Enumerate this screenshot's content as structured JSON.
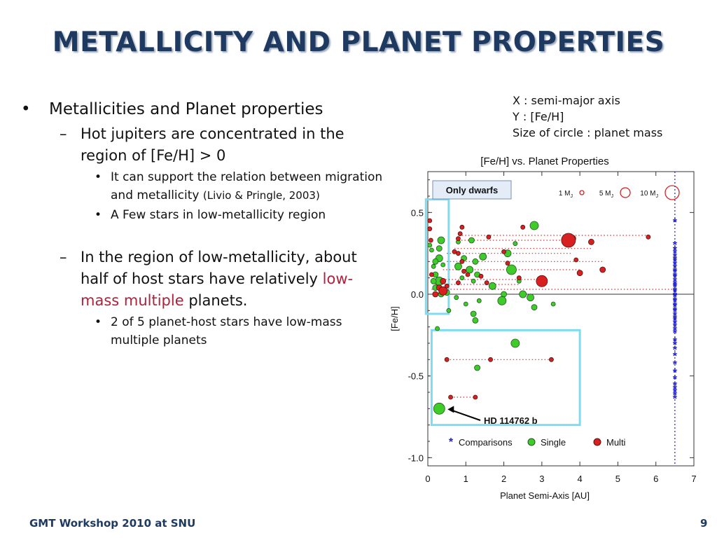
{
  "slide": {
    "title": "METALLICITY AND PLANET PROPERTIES",
    "bullets": {
      "b1": "Metallicities and Planet properties",
      "b1a": "Hot jupiters are concentrated in the region of [Fe/H] > 0",
      "b1a1_main": "It can support the relation between migration and metallicity ",
      "b1a1_cite": "(Livio & Pringle, 2003)",
      "b1a2": "A Few stars in low-metallicity region",
      "b1b_pre": "In the region of low-metallicity, about half of host stars have relatively ",
      "b1b_red": "low-mass multiple",
      "b1b_post": " planets.",
      "b1b1": "2 of 5 planet-host stars have low-mass multiple planets"
    },
    "caption": {
      "line1": "X : semi-major axis",
      "line2": "Y : [Fe/H]",
      "line3": "Size of circle : planet mass"
    },
    "footer": {
      "left": "GMT Workshop 2010 at SNU",
      "page": "9"
    },
    "bullet_marks": {
      "l1": "•",
      "l2": "–",
      "l3": "•"
    }
  },
  "chart_data": {
    "type": "scatter",
    "title": "[Fe/H] vs. Planet Properties",
    "xlabel": "Planet Semi-Axis [AU]",
    "ylabel": "[Fe/H]",
    "xlim": [
      0,
      7
    ],
    "ylim": [
      -1.05,
      0.75
    ],
    "xticks": [
      0,
      1,
      2,
      3,
      4,
      5,
      6,
      7
    ],
    "yticks": [
      {
        "v": 0.5,
        "label": "0.5"
      },
      {
        "v": 0.0,
        "label": "0.0"
      },
      {
        "v": -0.5,
        "label": "-0.5"
      },
      {
        "v": -1.0,
        "label": "-1.0"
      }
    ],
    "grid": false,
    "legend_position": "bottom",
    "colors": {
      "single": "#3fcc2a",
      "multi": "#d92020",
      "comparison": "#2222cc",
      "box": "#7ddcf0",
      "dots": "#cc3333",
      "vline": "#2222cc"
    },
    "size_key": [
      {
        "label": "1 M",
        "sub": "J",
        "mass": 1
      },
      {
        "label": "5 M",
        "sub": "J",
        "mass": 5
      },
      {
        "label": "10 M",
        "sub": "J",
        "mass": 10
      }
    ],
    "annotations": {
      "only_dwarfs": "Only dwarfs",
      "hd": "HD 114762 b"
    },
    "legend": [
      {
        "key": "comparison",
        "label": "Comparisons"
      },
      {
        "key": "single",
        "label": "Single"
      },
      {
        "key": "multi",
        "label": "Multi"
      }
    ],
    "series": [
      {
        "name": "Comparisons",
        "marker": "asterisk",
        "x": 6.5,
        "y": [
          0.44,
          0.3,
          0.27,
          0.25,
          0.23,
          0.21,
          0.2,
          0.18,
          0.16,
          0.14,
          0.13,
          0.11,
          0.1,
          0.08,
          0.06,
          0.05,
          0.04,
          0.02,
          0.01,
          -0.01,
          -0.02,
          -0.04,
          -0.05,
          -0.07,
          -0.08,
          -0.1,
          -0.11,
          -0.13,
          -0.15,
          -0.16,
          -0.18,
          -0.2,
          -0.22,
          -0.24,
          -0.29,
          -0.31,
          -0.34,
          -0.38,
          -0.43,
          -0.48,
          -0.52,
          -0.56,
          -0.58,
          -0.6,
          -0.62,
          -0.64
        ]
      },
      {
        "name": "Single",
        "marker": "circle",
        "points": [
          [
            2.8,
            0.42,
            4
          ],
          [
            0.35,
            0.33,
            3
          ],
          [
            0.3,
            0.28,
            2
          ],
          [
            0.05,
            0.3,
            1
          ],
          [
            0.1,
            0.27,
            1
          ],
          [
            0.3,
            0.22,
            3
          ],
          [
            0.2,
            0.2,
            2
          ],
          [
            0.15,
            0.17,
            1
          ],
          [
            0.4,
            0.18,
            1
          ],
          [
            0.2,
            0.12,
            2
          ],
          [
            0.3,
            0.08,
            4
          ],
          [
            0.15,
            0.08,
            2
          ],
          [
            0.2,
            0.04,
            2
          ],
          [
            0.35,
            0.0,
            2
          ],
          [
            0.5,
            0.01,
            2
          ],
          [
            0.8,
            0.32,
            1
          ],
          [
            1.15,
            0.33,
            2
          ],
          [
            2.3,
            0.31,
            1
          ],
          [
            2.1,
            0.25,
            3
          ],
          [
            0.95,
            0.22,
            2
          ],
          [
            1.25,
            0.2,
            2
          ],
          [
            1.45,
            0.23,
            3
          ],
          [
            0.8,
            0.17,
            3
          ],
          [
            1.1,
            0.15,
            3
          ],
          [
            2.2,
            0.15,
            5
          ],
          [
            1.3,
            0.12,
            2
          ],
          [
            0.9,
            0.1,
            1
          ],
          [
            1.2,
            0.08,
            1
          ],
          [
            2.4,
            0.08,
            1
          ],
          [
            1.7,
            0.05,
            3
          ],
          [
            2.5,
            0.0,
            3
          ],
          [
            2.0,
            0.0,
            2
          ],
          [
            2.7,
            -0.02,
            3
          ],
          [
            1.95,
            -0.04,
            4
          ],
          [
            0.75,
            -0.02,
            1
          ],
          [
            1.35,
            -0.04,
            1
          ],
          [
            1.0,
            -0.06,
            1
          ],
          [
            3.3,
            -0.06,
            1
          ],
          [
            2.8,
            -0.08,
            2
          ],
          [
            0.55,
            -0.1,
            1
          ],
          [
            1.2,
            -0.12,
            2
          ],
          [
            1.25,
            -0.16,
            2
          ],
          [
            0.25,
            -0.21,
            1
          ],
          [
            2.3,
            -0.3,
            4
          ],
          [
            1.3,
            -0.45,
            2
          ],
          [
            0.3,
            -0.7,
            6
          ]
        ]
      },
      {
        "name": "Multi",
        "marker": "circle",
        "points": [
          [
            0.9,
            0.41,
            1
          ],
          [
            0.85,
            0.37,
            1
          ],
          [
            2.5,
            0.41,
            1
          ],
          [
            5.8,
            0.35,
            1
          ],
          [
            0.8,
            0.34,
            1
          ],
          [
            1.6,
            0.35,
            1
          ],
          [
            3.8,
            0.34,
            3
          ],
          [
            4.3,
            0.32,
            2
          ],
          [
            3.7,
            0.33,
            9
          ],
          [
            0.7,
            0.26,
            1
          ],
          [
            0.8,
            0.25,
            1
          ],
          [
            2.0,
            0.26,
            1
          ],
          [
            3.9,
            0.21,
            1
          ],
          [
            0.9,
            0.2,
            1
          ],
          [
            2.1,
            0.19,
            1
          ],
          [
            4.6,
            0.15,
            2
          ],
          [
            4.0,
            0.13,
            2
          ],
          [
            0.95,
            0.14,
            1
          ],
          [
            1.05,
            0.12,
            1
          ],
          [
            1.4,
            0.11,
            1
          ],
          [
            2.4,
            0.1,
            1
          ],
          [
            3.0,
            0.08,
            6
          ],
          [
            1.55,
            0.07,
            1
          ],
          [
            0.8,
            0.07,
            1
          ],
          [
            0.4,
            0.08,
            2
          ],
          [
            0.5,
            0.05,
            1
          ],
          [
            0.3,
            0.04,
            2
          ],
          [
            0.4,
            0.02,
            4
          ],
          [
            0.2,
            0.0,
            2
          ],
          [
            0.05,
            0.45,
            1
          ],
          [
            0.08,
            0.33,
            1
          ],
          [
            0.05,
            0.4,
            1
          ],
          [
            0.1,
            0.12,
            1
          ],
          [
            0.5,
            -0.4,
            1
          ],
          [
            1.65,
            -0.4,
            1
          ],
          [
            3.25,
            -0.4,
            1
          ],
          [
            0.6,
            -0.63,
            1
          ],
          [
            1.25,
            -0.63,
            1
          ]
        ]
      }
    ],
    "links": [
      [
        0.9,
        5.8,
        0.36
      ],
      [
        0.8,
        3.8,
        0.33
      ],
      [
        0.7,
        4.3,
        0.28
      ],
      [
        0.5,
        3.8,
        0.25
      ],
      [
        0.5,
        4.6,
        0.2
      ],
      [
        0.4,
        4.0,
        0.15
      ],
      [
        0.3,
        3.0,
        0.09
      ],
      [
        0.2,
        2.4,
        0.06
      ],
      [
        0.1,
        6.5,
        0.03
      ],
      [
        0.5,
        3.25,
        -0.4
      ],
      [
        0.6,
        1.25,
        -0.63
      ]
    ],
    "ref_line_x": 6.5
  }
}
